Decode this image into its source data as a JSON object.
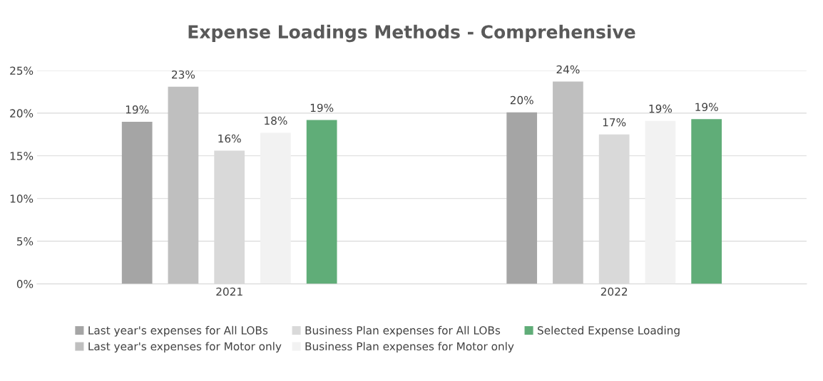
{
  "chart_data": {
    "type": "bar",
    "title": "Expense Loadings Methods - Comprehensive",
    "categories": [
      "2021",
      "2022"
    ],
    "series": [
      {
        "name": "Last year's expenses for All LOBs",
        "color": "#a5a5a5",
        "values": [
          19.0,
          20.1
        ],
        "value_labels": [
          "19%",
          "20%"
        ]
      },
      {
        "name": "Last year's expenses for Motor only",
        "color": "#bfbfbf",
        "values": [
          23.1,
          23.7
        ],
        "value_labels": [
          "23%",
          "24%"
        ]
      },
      {
        "name": "Business Plan expenses for All LOBs",
        "color": "#d9d9d9",
        "values": [
          15.6,
          17.5
        ],
        "value_labels": [
          "16%",
          "17%"
        ]
      },
      {
        "name": "Business Plan expenses for Motor only",
        "color": "#f2f2f2",
        "values": [
          17.7,
          19.1
        ],
        "value_labels": [
          "18%",
          "19%"
        ]
      },
      {
        "name": "Selected Expense Loading",
        "color": "#60ad78",
        "values": [
          19.2,
          19.3
        ],
        "value_labels": [
          "19%",
          "19%"
        ]
      }
    ],
    "ylim": [
      0,
      25
    ],
    "yticks": [
      {
        "value": 0,
        "label": "0%"
      },
      {
        "value": 5,
        "label": "5%"
      },
      {
        "value": 10,
        "label": "10%"
      },
      {
        "value": 15,
        "label": "15%"
      },
      {
        "value": 20,
        "label": "20%"
      },
      {
        "value": 25,
        "label": "25%"
      }
    ],
    "grid": "y",
    "legend": "bottom"
  }
}
